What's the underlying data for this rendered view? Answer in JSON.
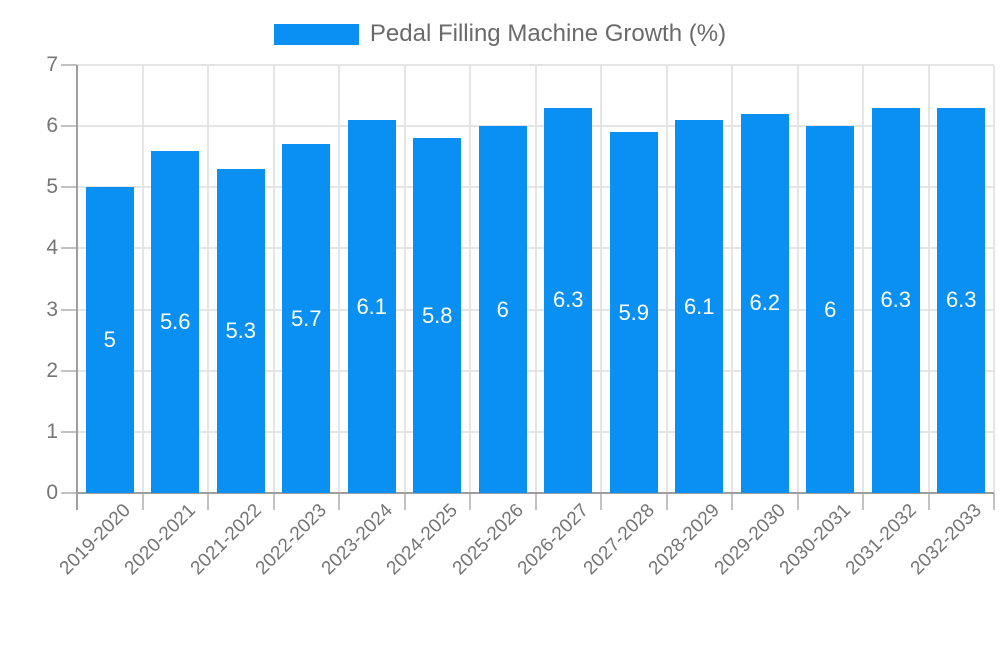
{
  "chart_data": {
    "type": "bar",
    "series_name": "Pedal Filling Machine Growth (%)",
    "categories": [
      "2019-2020",
      "2020-2021",
      "2021-2022",
      "2022-2023",
      "2023-2024",
      "2024-2025",
      "2025-2026",
      "2026-2027",
      "2027-2028",
      "2028-2029",
      "2029-2030",
      "2030-2031",
      "2031-2032",
      "2032-2033"
    ],
    "values": [
      5,
      5.6,
      5.3,
      5.7,
      6.1,
      5.8,
      6,
      6.3,
      5.9,
      6.1,
      6.2,
      6,
      6.3,
      6.3
    ],
    "yticks": [
      0,
      1,
      2,
      3,
      4,
      5,
      6,
      7
    ],
    "ylim": [
      0,
      7
    ],
    "grid": true,
    "legend_position": "top-center",
    "value_labels": "white, centered inside bars",
    "x_label_rotation_deg": -45,
    "colors": {
      "bar": "#0a8ff2",
      "grid": "#e5e5e5",
      "tick": "#c2c2c2",
      "axis": "#9e9e9e",
      "axis_text": "#757575",
      "legend_text": "#6a6a6a",
      "value_label_text": "#ffffff",
      "background": "#ffffff"
    }
  }
}
